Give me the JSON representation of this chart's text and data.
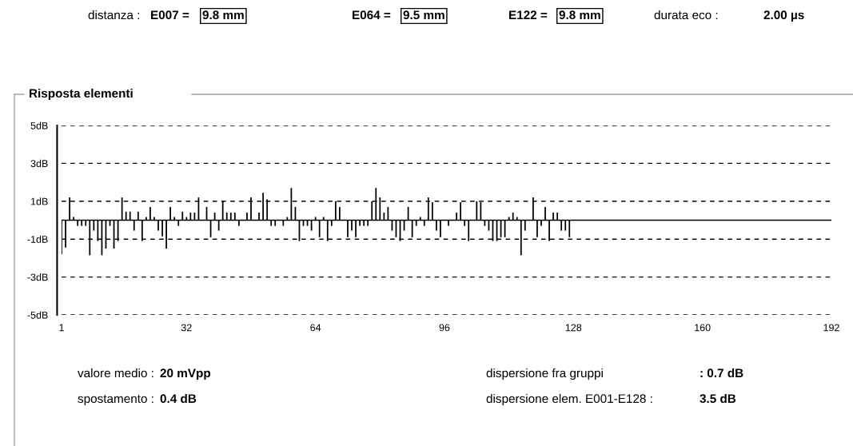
{
  "chart_data": {
    "type": "bar",
    "title": "Risposta elementi",
    "x": [
      1,
      2,
      3,
      4,
      5,
      6,
      7,
      8,
      9,
      10,
      11,
      12,
      13,
      14,
      15,
      16,
      17,
      18,
      19,
      20,
      21,
      22,
      23,
      24,
      25,
      26,
      27,
      28,
      29,
      30,
      31,
      32,
      33,
      34,
      35,
      36,
      37,
      38,
      39,
      40,
      41,
      42,
      43,
      44,
      45,
      46,
      47,
      48,
      49,
      50,
      51,
      52,
      53,
      54,
      55,
      56,
      57,
      58,
      59,
      60,
      61,
      62,
      63,
      64,
      65,
      66,
      67,
      68,
      69,
      70,
      71,
      72,
      73,
      74,
      75,
      76,
      77,
      78,
      79,
      80,
      81,
      82,
      83,
      84,
      85,
      86,
      87,
      88,
      89,
      90,
      91,
      92,
      93,
      94,
      95,
      96,
      97,
      98,
      99,
      100,
      101,
      102,
      103,
      104,
      105,
      106,
      107,
      108,
      109,
      110,
      111,
      112,
      113,
      114,
      115,
      116,
      117,
      118,
      119,
      120,
      121,
      122,
      123,
      124,
      125,
      126,
      127,
      128
    ],
    "values": [
      -1.8,
      -1.45,
      1.2,
      0.17,
      -0.3,
      -0.3,
      -0.3,
      -1.85,
      -0.55,
      -1.1,
      -1.85,
      -1.5,
      -0.3,
      -1.5,
      -1.1,
      1.2,
      0.45,
      0.45,
      -0.55,
      0.45,
      -1.1,
      0.17,
      0.7,
      0.17,
      -0.55,
      -0.85,
      -1.5,
      0.7,
      0.17,
      -0.3,
      0.45,
      0.17,
      0.4,
      0.4,
      1.2,
      0,
      0.7,
      -0.9,
      0.4,
      -0.55,
      1.0,
      0.4,
      0.4,
      0.4,
      -0.3,
      0,
      0.4,
      1.2,
      0,
      0.4,
      1.45,
      1.1,
      -0.3,
      -0.3,
      0,
      -0.3,
      0.17,
      1.7,
      0.7,
      -1.1,
      -0.3,
      -0.3,
      -0.55,
      0.17,
      -0.9,
      0.17,
      -1.1,
      -0.3,
      1.0,
      0.7,
      0,
      -0.9,
      -0.55,
      -0.9,
      -0.3,
      -0.3,
      -0.3,
      1.0,
      1.7,
      1.2,
      0.4,
      0.7,
      -0.55,
      -0.9,
      -1.1,
      -0.55,
      0.7,
      -0.9,
      -0.3,
      0.17,
      -0.3,
      1.2,
      0.95,
      -0.55,
      -0.9,
      0,
      -0.3,
      0,
      0.4,
      0.95,
      -0.3,
      -1.1,
      0,
      1.0,
      0.95,
      -0.3,
      -0.55,
      -1.1,
      -1.1,
      -0.9,
      -0.9,
      0.17,
      0.4,
      0.17,
      -1.85,
      -0.55,
      0,
      1.2,
      -0.9,
      -0.3,
      0.7,
      -1.1,
      0.4,
      0.4,
      -0.55,
      -0.55,
      -0.9,
      0
    ],
    "color": "#000000",
    "xlim": [
      1,
      192
    ],
    "xticks": [
      1,
      32,
      64,
      96,
      128,
      160,
      192
    ],
    "ylim": [
      -5,
      5
    ],
    "yticks": [
      {
        "value": 5,
        "label": "5dB"
      },
      {
        "value": 3,
        "label": "3dB"
      },
      {
        "value": 1,
        "label": "1dB"
      },
      {
        "value": -1,
        "label": "-1dB"
      },
      {
        "value": -3,
        "label": "-3dB"
      },
      {
        "value": -5,
        "label": "-5dB"
      }
    ],
    "grid": "y",
    "line_style": "dashed",
    "ref_lines": [
      {
        "axis": "y",
        "value": 0,
        "color": "#000000",
        "line_style": "solid"
      }
    ],
    "annotations": [
      "distanza :",
      "E007 =",
      "9.8 mm",
      "E064 =",
      "9.5 mm",
      "E122 =",
      "9.8 mm",
      "durata eco :",
      "2.00 µs",
      "valore medio :",
      "20 mVpp",
      "spostamento :",
      "0.4 dB",
      "dispersione fra gruppi",
      ": 0.7 dB",
      "dispersione elem. E001-E128 :",
      "3.5 dB"
    ]
  }
}
